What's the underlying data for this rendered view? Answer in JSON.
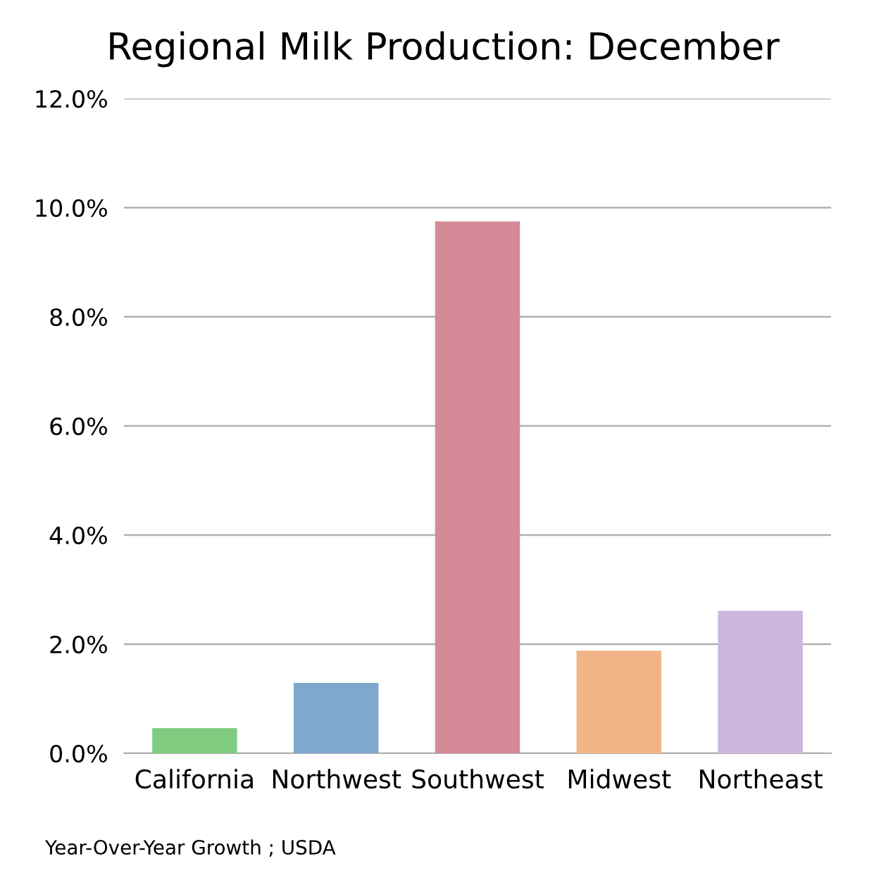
{
  "chart_data": {
    "type": "bar",
    "title": "Regional Milk Production: December",
    "categories": [
      "California",
      "Northwest",
      "Southwest",
      "Midwest",
      "Northeast"
    ],
    "values": [
      0.46,
      1.29,
      9.75,
      1.88,
      2.61
    ],
    "colors": [
      "#7fcc80",
      "#7fa8cf",
      "#d48a96",
      "#f2b486",
      "#cdb6de"
    ],
    "ylim": [
      0,
      12
    ],
    "yticks": [
      {
        "value": 0,
        "label": "0.0%"
      },
      {
        "value": 2,
        "label": "2.0%"
      },
      {
        "value": 4,
        "label": "4.0%"
      },
      {
        "value": 6,
        "label": "6.0%"
      },
      {
        "value": 8,
        "label": "8.0%"
      },
      {
        "value": 10,
        "label": "10.0%"
      },
      {
        "value": 12,
        "label": "12.0%"
      }
    ],
    "grid": "y",
    "annotations": [
      "Year-Over-Year Growth ; USDA"
    ]
  }
}
